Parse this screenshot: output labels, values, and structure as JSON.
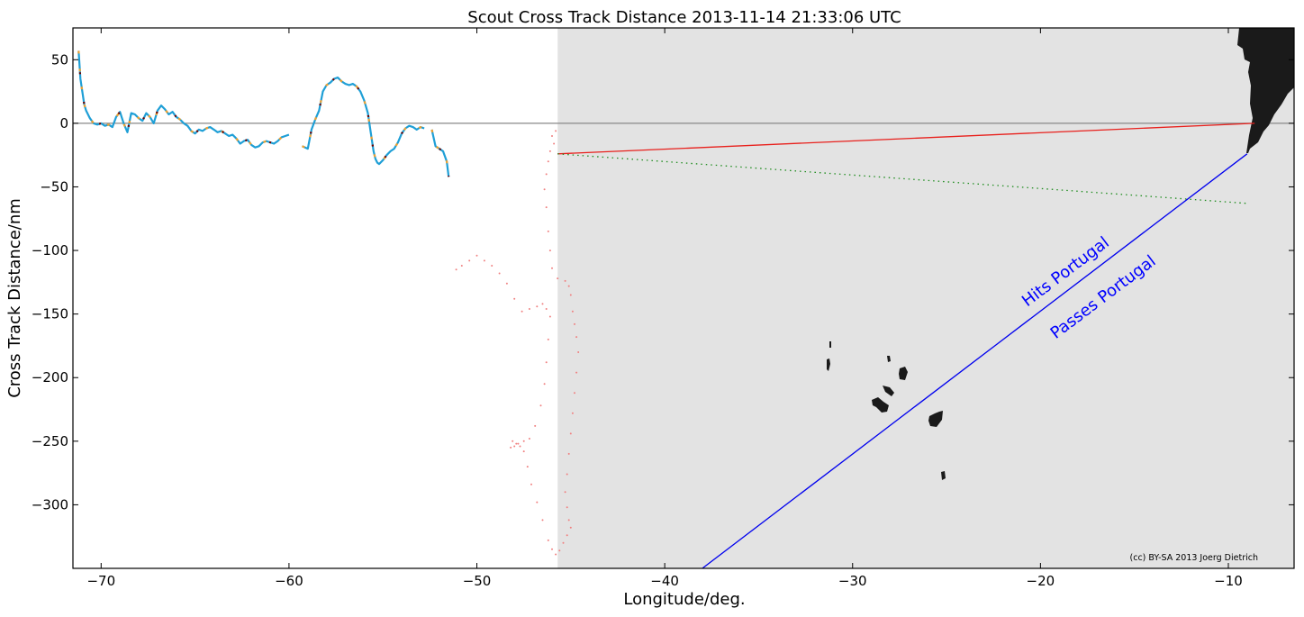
{
  "chart_data": {
    "type": "line",
    "title": "Scout Cross Track Distance 2013-11-14 21:33:06 UTC",
    "xlabel": "Longitude/deg.",
    "ylabel": "Cross Track Distance/nm",
    "xlim": [
      -71.5,
      -6.5
    ],
    "ylim": [
      -350,
      75
    ],
    "xticks": [
      -70,
      -60,
      -50,
      -40,
      -30,
      -20,
      -10
    ],
    "yticks": [
      50,
      0,
      -50,
      -100,
      -150,
      -200,
      -250,
      -300
    ],
    "xtick_labels": [
      "−70",
      "−60",
      "−50",
      "−40",
      "−30",
      "−20",
      "−10"
    ],
    "ytick_labels": [
      "50",
      "0",
      "−50",
      "−100",
      "−150",
      "−200",
      "−250",
      "−300"
    ],
    "grid": false,
    "shaded_region": {
      "x_from": -45.7,
      "color": "#e3e3e3"
    },
    "zero_line": {
      "y": 0,
      "color": "#888888"
    },
    "annotations": [
      {
        "text": "Hits Portugal",
        "x": -18.5,
        "y": -120
      },
      {
        "text": "Passes Portugal",
        "x": -16.5,
        "y": -140
      }
    ],
    "credit": "(cc) BY-SA 2013 Joerg Dietrich",
    "colors": {
      "track": "#1f9fd6",
      "orange": "#f0a030",
      "red": "#e8201c",
      "green": "#1e8c1e",
      "blue": "#0000ee",
      "land": "#1a1a1a",
      "pink": "#f08080"
    },
    "series": [
      {
        "style": "track",
        "x": [
          -71.2,
          -71.1,
          -71.0,
          -70.9,
          -70.8,
          -70.6,
          -70.4,
          -70.2,
          -70.0,
          -69.8,
          -69.6,
          -69.4,
          -69.2,
          -69.0,
          -68.8,
          -68.6,
          -68.4,
          -68.2,
          -68.0,
          -67.8,
          -67.6,
          -67.4,
          -67.2,
          -67.0,
          -66.8,
          -66.6,
          -66.4,
          -66.2,
          -66.0,
          -65.8,
          -65.6,
          -65.4,
          -65.2,
          -65.0,
          -64.8,
          -64.6,
          -64.4,
          -64.2,
          -64.0,
          -63.8,
          -63.6,
          -63.4,
          -63.2,
          -63.0,
          -62.8,
          -62.6,
          -62.4,
          -62.2,
          -62.0,
          -61.8,
          -61.6,
          -61.4,
          -61.2,
          -61.0,
          -60.8,
          -60.6,
          -60.4,
          -60.2,
          -60.0
        ],
        "y": [
          57,
          35,
          25,
          15,
          10,
          4,
          0,
          -1,
          0,
          -2,
          -1,
          -3,
          5,
          9,
          0,
          -7,
          8,
          7,
          4,
          2,
          8,
          5,
          0,
          10,
          14,
          11,
          7,
          9,
          5,
          3,
          0,
          -2,
          -6,
          -8,
          -5,
          -6,
          -4,
          -3,
          -5,
          -7,
          -6,
          -8,
          -10,
          -9,
          -12,
          -16,
          -14,
          -13,
          -17,
          -19,
          -18,
          -15,
          -14,
          -15,
          -16,
          -14,
          -11,
          -10,
          -9
        ]
      },
      {
        "style": "track",
        "x": [
          -59.3,
          -59.0,
          -58.8,
          -58.6,
          -58.4,
          -58.2,
          -58.0,
          -57.8,
          -57.6,
          -57.4,
          -57.2,
          -57.0,
          -56.8,
          -56.6,
          -56.4,
          -56.2,
          -56.0,
          -55.8,
          -55.6,
          -55.5,
          -55.4,
          -55.3,
          -55.2,
          -55.0,
          -54.8,
          -54.6,
          -54.4,
          -54.2,
          -54.0,
          -53.8,
          -53.6,
          -53.4,
          -53.2,
          -53.0,
          -52.8
        ],
        "y": [
          -18,
          -20,
          -5,
          3,
          10,
          25,
          30,
          32,
          35,
          36,
          33,
          31,
          30,
          31,
          29,
          25,
          18,
          8,
          -12,
          -22,
          -28,
          -31,
          -32,
          -29,
          -25,
          -22,
          -20,
          -15,
          -8,
          -4,
          -2,
          -3,
          -5,
          -3,
          -4
        ]
      },
      {
        "style": "track",
        "x": [
          -52.4,
          -52.2,
          -52.0,
          -51.8,
          -51.6,
          -51.5
        ],
        "y": [
          -5,
          -18,
          -20,
          -22,
          -30,
          -42
        ]
      },
      {
        "style": "red",
        "x": [
          -45.7,
          -8.6
        ],
        "y": [
          -24,
          0
        ]
      },
      {
        "style": "green",
        "x": [
          -45.7,
          -9.0
        ],
        "y": [
          -24,
          -63
        ]
      },
      {
        "style": "blue",
        "x": [
          -38.0,
          -9.0
        ],
        "y": [
          -350,
          -24
        ]
      },
      {
        "style": "pink",
        "x": [
          -45.8,
          -46.0,
          -45.9,
          -46.1,
          -46.2,
          -46.3,
          -46.4,
          -46.3,
          -46.2,
          -46.1,
          -46.0,
          -45.7,
          -45.3,
          -45.1,
          -45.0,
          -44.9,
          -44.8,
          -44.7,
          -44.6,
          -44.7,
          -44.8,
          -44.9,
          -45.0,
          -45.1,
          -45.2,
          -45.3,
          -45.2,
          -45.1,
          -45.0,
          -45.2,
          -45.4,
          -45.6,
          -45.8,
          -46.0,
          -46.2,
          -46.5,
          -46.8,
          -47.1,
          -47.3,
          -47.5,
          -47.7,
          -47.9,
          -48.1,
          -48.2,
          -48.0,
          -47.8,
          -47.5,
          -47.2,
          -46.9,
          -46.6,
          -46.4,
          -46.3,
          -46.2,
          -46.1,
          -46.3,
          -46.5,
          -46.8,
          -47.2,
          -47.6,
          -48.0,
          -48.4,
          -48.8,
          -49.2,
          -49.6,
          -50.0,
          -50.4,
          -50.8,
          -51.1
        ],
        "y": [
          -6,
          -10,
          -16,
          -22,
          -30,
          -40,
          -52,
          -66,
          -85,
          -100,
          -114,
          -122,
          -124,
          -128,
          -135,
          -148,
          -158,
          -168,
          -180,
          -196,
          -212,
          -228,
          -244,
          -260,
          -276,
          -290,
          -302,
          -312,
          -318,
          -324,
          -330,
          -336,
          -339,
          -335,
          -328,
          -312,
          -298,
          -284,
          -270,
          -258,
          -254,
          -252,
          -250,
          -255,
          -254,
          -252,
          -250,
          -248,
          -238,
          -222,
          -205,
          -188,
          -170,
          -152,
          -146,
          -142,
          -144,
          -146,
          -148,
          -138,
          -126,
          -118,
          -112,
          -108,
          -104,
          -108,
          -112,
          -115
        ]
      }
    ]
  }
}
